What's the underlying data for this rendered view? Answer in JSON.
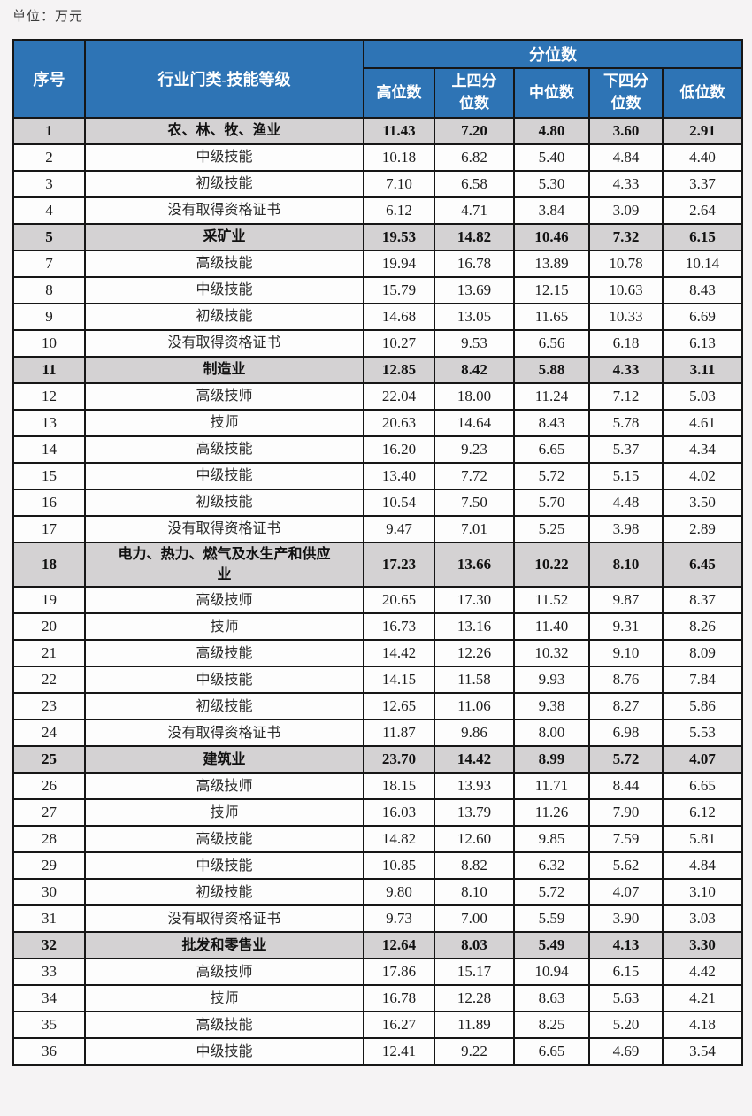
{
  "page": {
    "unit_label": "单位：万元"
  },
  "colors": {
    "header_bg": "#2e74b5",
    "header_text": "#ffffff",
    "section_row_bg": "#d4d2d3",
    "row_bg": "#fdfdfd",
    "border": "#161616",
    "page_bg": "#f5f3f4"
  },
  "table": {
    "header": {
      "index_col": "序号",
      "category_col": "行业门类-技能等级",
      "group_col": "分位数",
      "sub_cols": [
        "高位数",
        "上四分位数",
        "中位数",
        "下四分位数",
        "低位数"
      ]
    },
    "rows": [
      {
        "no": "1",
        "label": "农、林、牧、渔业",
        "type": "industry",
        "values": [
          "11.43",
          "7.20",
          "4.80",
          "3.60",
          "2.91"
        ]
      },
      {
        "no": "2",
        "label": "中级技能",
        "type": "skill",
        "values": [
          "10.18",
          "6.82",
          "5.40",
          "4.84",
          "4.40"
        ]
      },
      {
        "no": "3",
        "label": "初级技能",
        "type": "skill",
        "values": [
          "7.10",
          "6.58",
          "5.30",
          "4.33",
          "3.37"
        ]
      },
      {
        "no": "4",
        "label": "没有取得资格证书",
        "type": "skill",
        "values": [
          "6.12",
          "4.71",
          "3.84",
          "3.09",
          "2.64"
        ]
      },
      {
        "no": "5",
        "label": "采矿业",
        "type": "industry",
        "values": [
          "19.53",
          "14.82",
          "10.46",
          "7.32",
          "6.15"
        ]
      },
      {
        "no": "7",
        "label": "高级技能",
        "type": "skill",
        "values": [
          "19.94",
          "16.78",
          "13.89",
          "10.78",
          "10.14"
        ]
      },
      {
        "no": "8",
        "label": "中级技能",
        "type": "skill",
        "values": [
          "15.79",
          "13.69",
          "12.15",
          "10.63",
          "8.43"
        ]
      },
      {
        "no": "9",
        "label": "初级技能",
        "type": "skill",
        "values": [
          "14.68",
          "13.05",
          "11.65",
          "10.33",
          "6.69"
        ]
      },
      {
        "no": "10",
        "label": "没有取得资格证书",
        "type": "skill",
        "values": [
          "10.27",
          "9.53",
          "6.56",
          "6.18",
          "6.13"
        ]
      },
      {
        "no": "11",
        "label": "制造业",
        "type": "industry",
        "values": [
          "12.85",
          "8.42",
          "5.88",
          "4.33",
          "3.11"
        ]
      },
      {
        "no": "12",
        "label": "高级技师",
        "type": "skill",
        "values": [
          "22.04",
          "18.00",
          "11.24",
          "7.12",
          "5.03"
        ]
      },
      {
        "no": "13",
        "label": "技师",
        "type": "skill",
        "values": [
          "20.63",
          "14.64",
          "8.43",
          "5.78",
          "4.61"
        ]
      },
      {
        "no": "14",
        "label": "高级技能",
        "type": "skill",
        "values": [
          "16.20",
          "9.23",
          "6.65",
          "5.37",
          "4.34"
        ]
      },
      {
        "no": "15",
        "label": "中级技能",
        "type": "skill",
        "values": [
          "13.40",
          "7.72",
          "5.72",
          "5.15",
          "4.02"
        ]
      },
      {
        "no": "16",
        "label": "初级技能",
        "type": "skill",
        "values": [
          "10.54",
          "7.50",
          "5.70",
          "4.48",
          "3.50"
        ]
      },
      {
        "no": "17",
        "label": "没有取得资格证书",
        "type": "skill",
        "values": [
          "9.47",
          "7.01",
          "5.25",
          "3.98",
          "2.89"
        ]
      },
      {
        "no": "18",
        "label": "电力、热力、燃气及水生产和供应业",
        "type": "industry",
        "values": [
          "17.23",
          "13.66",
          "10.22",
          "8.10",
          "6.45"
        ]
      },
      {
        "no": "19",
        "label": "高级技师",
        "type": "skill",
        "values": [
          "20.65",
          "17.30",
          "11.52",
          "9.87",
          "8.37"
        ]
      },
      {
        "no": "20",
        "label": "技师",
        "type": "skill",
        "values": [
          "16.73",
          "13.16",
          "11.40",
          "9.31",
          "8.26"
        ]
      },
      {
        "no": "21",
        "label": "高级技能",
        "type": "skill",
        "values": [
          "14.42",
          "12.26",
          "10.32",
          "9.10",
          "8.09"
        ]
      },
      {
        "no": "22",
        "label": "中级技能",
        "type": "skill",
        "values": [
          "14.15",
          "11.58",
          "9.93",
          "8.76",
          "7.84"
        ]
      },
      {
        "no": "23",
        "label": "初级技能",
        "type": "skill",
        "values": [
          "12.65",
          "11.06",
          "9.38",
          "8.27",
          "5.86"
        ]
      },
      {
        "no": "24",
        "label": "没有取得资格证书",
        "type": "skill",
        "values": [
          "11.87",
          "9.86",
          "8.00",
          "6.98",
          "5.53"
        ]
      },
      {
        "no": "25",
        "label": "建筑业",
        "type": "industry",
        "values": [
          "23.70",
          "14.42",
          "8.99",
          "5.72",
          "4.07"
        ]
      },
      {
        "no": "26",
        "label": "高级技师",
        "type": "skill",
        "values": [
          "18.15",
          "13.93",
          "11.71",
          "8.44",
          "6.65"
        ]
      },
      {
        "no": "27",
        "label": "技师",
        "type": "skill",
        "values": [
          "16.03",
          "13.79",
          "11.26",
          "7.90",
          "6.12"
        ]
      },
      {
        "no": "28",
        "label": "高级技能",
        "type": "skill",
        "values": [
          "14.82",
          "12.60",
          "9.85",
          "7.59",
          "5.81"
        ]
      },
      {
        "no": "29",
        "label": "中级技能",
        "type": "skill",
        "values": [
          "10.85",
          "8.82",
          "6.32",
          "5.62",
          "4.84"
        ]
      },
      {
        "no": "30",
        "label": "初级技能",
        "type": "skill",
        "values": [
          "9.80",
          "8.10",
          "5.72",
          "4.07",
          "3.10"
        ]
      },
      {
        "no": "31",
        "label": "没有取得资格证书",
        "type": "skill",
        "values": [
          "9.73",
          "7.00",
          "5.59",
          "3.90",
          "3.03"
        ]
      },
      {
        "no": "32",
        "label": "批发和零售业",
        "type": "industry",
        "values": [
          "12.64",
          "8.03",
          "5.49",
          "4.13",
          "3.30"
        ]
      },
      {
        "no": "33",
        "label": "高级技师",
        "type": "skill",
        "values": [
          "17.86",
          "15.17",
          "10.94",
          "6.15",
          "4.42"
        ]
      },
      {
        "no": "34",
        "label": "技师",
        "type": "skill",
        "values": [
          "16.78",
          "12.28",
          "8.63",
          "5.63",
          "4.21"
        ]
      },
      {
        "no": "35",
        "label": "高级技能",
        "type": "skill",
        "values": [
          "16.27",
          "11.89",
          "8.25",
          "5.20",
          "4.18"
        ]
      },
      {
        "no": "36",
        "label": "中级技能",
        "type": "skill",
        "values": [
          "12.41",
          "9.22",
          "6.65",
          "4.69",
          "3.54"
        ]
      }
    ]
  }
}
